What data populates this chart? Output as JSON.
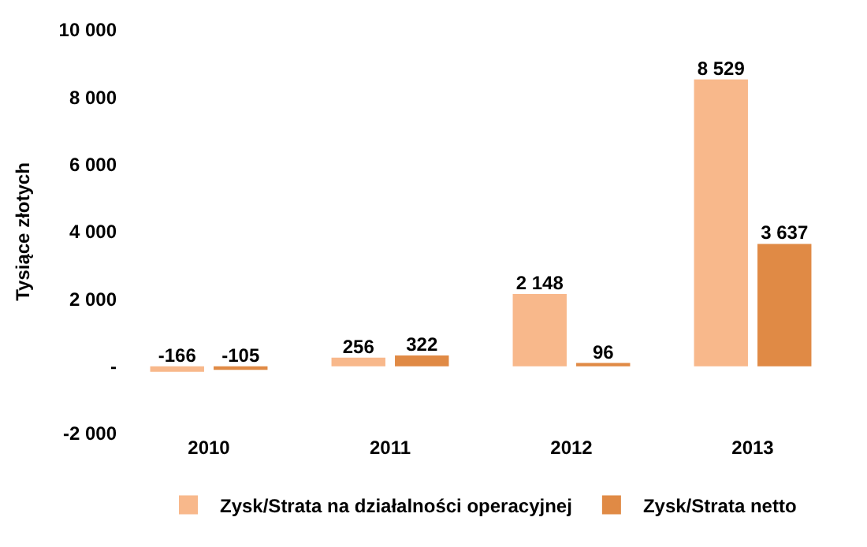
{
  "chart_data": {
    "type": "bar",
    "ylabel": "Tysiące złotych",
    "categories": [
      "2010",
      "2011",
      "2012",
      "2013"
    ],
    "series": [
      {
        "name": "Zysk/Strata na działalności operacyjnej",
        "color": "#f8b88b",
        "values": [
          -166,
          256,
          2148,
          8529
        ],
        "value_labels": [
          "-166",
          "256",
          "2 148",
          "8 529"
        ]
      },
      {
        "name": "Zysk/Strata netto",
        "color": "#e08a45",
        "values": [
          -105,
          322,
          96,
          3637
        ],
        "value_labels": [
          "-105",
          "322",
          "96",
          "3 637"
        ]
      }
    ],
    "ylim": [
      -2000,
      10000
    ],
    "yticks": [
      {
        "value": -2000,
        "label": "-2 000"
      },
      {
        "value": 0,
        "label": "-"
      },
      {
        "value": 2000,
        "label": "2 000"
      },
      {
        "value": 4000,
        "label": "4 000"
      },
      {
        "value": 6000,
        "label": "6 000"
      },
      {
        "value": 8000,
        "label": "8 000"
      },
      {
        "value": 10000,
        "label": "10 000"
      }
    ],
    "legend": "bottom"
  }
}
